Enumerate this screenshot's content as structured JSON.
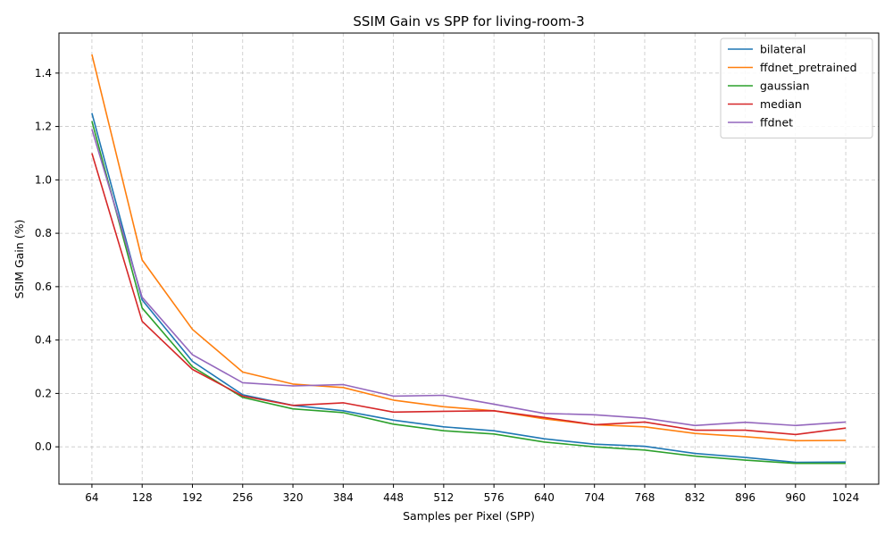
{
  "chart_data": {
    "type": "line",
    "title": "SSIM Gain vs SPP for living-room-3",
    "xlabel": "Samples per Pixel (SPP)",
    "ylabel": "SSIM Gain (%)",
    "x": [
      64,
      128,
      192,
      256,
      320,
      384,
      448,
      512,
      576,
      640,
      704,
      768,
      832,
      896,
      960,
      1024
    ],
    "x_tick_labels": [
      "64",
      "128",
      "192",
      "256",
      "320",
      "384",
      "448",
      "512",
      "576",
      "640",
      "704",
      "768",
      "832",
      "896",
      "960",
      "1024"
    ],
    "y_tick_values": [
      0.0,
      0.2,
      0.4,
      0.6,
      0.8,
      1.0,
      1.2,
      1.4
    ],
    "y_tick_labels": [
      "0.0",
      "0.2",
      "0.4",
      "0.6",
      "0.8",
      "1.0",
      "1.2",
      "1.4"
    ],
    "xlim": [
      22,
      1066
    ],
    "ylim": [
      -0.14,
      1.55
    ],
    "grid": true,
    "legend_position": "top-right",
    "series": [
      {
        "name": "bilateral",
        "color": "#1f77b4",
        "values": [
          1.25,
          0.55,
          0.32,
          0.195,
          0.155,
          0.135,
          0.1,
          0.075,
          0.06,
          0.03,
          0.01,
          0.002,
          -0.025,
          -0.04,
          -0.058,
          -0.057
        ]
      },
      {
        "name": "ffdnet_pretrained",
        "color": "#ff7f0e",
        "values": [
          1.47,
          0.7,
          0.44,
          0.28,
          0.235,
          0.222,
          0.175,
          0.15,
          0.135,
          0.105,
          0.083,
          0.075,
          0.05,
          0.038,
          0.023,
          0.024
        ]
      },
      {
        "name": "gaussian",
        "color": "#2ca02c",
        "values": [
          1.22,
          0.52,
          0.3,
          0.185,
          0.142,
          0.128,
          0.085,
          0.06,
          0.048,
          0.018,
          0.0,
          -0.012,
          -0.035,
          -0.05,
          -0.062,
          -0.062
        ]
      },
      {
        "name": "median",
        "color": "#d62728",
        "values": [
          1.1,
          0.47,
          0.29,
          0.19,
          0.155,
          0.165,
          0.13,
          0.133,
          0.135,
          0.11,
          0.083,
          0.093,
          0.062,
          0.062,
          0.046,
          0.07
        ]
      },
      {
        "name": "ffdnet",
        "color": "#9467bd",
        "values": [
          1.19,
          0.56,
          0.345,
          0.24,
          0.228,
          0.233,
          0.19,
          0.193,
          0.16,
          0.125,
          0.12,
          0.107,
          0.08,
          0.092,
          0.08,
          0.093
        ]
      }
    ]
  }
}
